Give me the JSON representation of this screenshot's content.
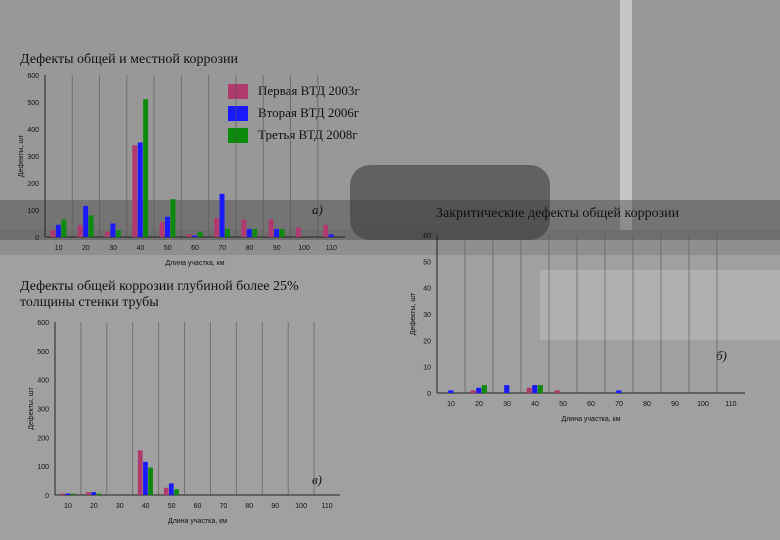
{
  "chart_data": [
    {
      "type": "bar",
      "title": "Дефекты общей и местной коррозии",
      "tag": "а)",
      "xlabel": "Длина участка, км",
      "ylabel": "Дефекты, шт",
      "ylim": [
        0,
        600
      ],
      "yticks": [
        "0",
        "100",
        "200",
        "300",
        "400",
        "500",
        "600"
      ],
      "categories": [
        "10",
        "20",
        "30",
        "40",
        "50",
        "60",
        "70",
        "80",
        "90",
        "100",
        "110"
      ],
      "series": [
        {
          "name": "Первая ВТД 2003г",
          "color": "#b03a6e",
          "values": [
            25,
            45,
            20,
            340,
            55,
            10,
            70,
            65,
            65,
            35,
            45
          ]
        },
        {
          "name": "Вторая ВТД 2006г",
          "color": "#1a1aff",
          "values": [
            45,
            115,
            50,
            350,
            75,
            5,
            160,
            30,
            30,
            0,
            10
          ]
        },
        {
          "name": "Третья ВТД 2008г",
          "color": "#0b8a0b",
          "values": [
            65,
            80,
            25,
            510,
            140,
            20,
            30,
            30,
            30,
            0,
            0
          ]
        }
      ],
      "grid": "vertical",
      "legend": "top-right"
    },
    {
      "type": "bar",
      "title": "Закритические дефекты общей коррозии",
      "tag": "б)",
      "xlabel": "Длина участка, км",
      "ylabel": "Дефекты, шт",
      "ylim": [
        0,
        60
      ],
      "yticks": [
        "0",
        "10",
        "20",
        "30",
        "40",
        "50",
        "60"
      ],
      "categories": [
        "10",
        "20",
        "30",
        "40",
        "50",
        "60",
        "70",
        "80",
        "90",
        "100",
        "110"
      ],
      "series": [
        {
          "name": "Первая ВТД 2003г",
          "color": "#b03a6e",
          "values": [
            0,
            1,
            0,
            2,
            1,
            0,
            0,
            0,
            0,
            0,
            0
          ]
        },
        {
          "name": "Вторая ВТД 2006г",
          "color": "#1a1aff",
          "values": [
            1,
            2,
            3,
            3,
            0,
            0,
            1,
            0,
            0,
            0,
            0
          ]
        },
        {
          "name": "Третья ВТД 2008г",
          "color": "#0b8a0b",
          "values": [
            0,
            3,
            0,
            3,
            0,
            0,
            0,
            0,
            0,
            0,
            0
          ]
        }
      ],
      "grid": "vertical"
    },
    {
      "type": "bar",
      "title": "Дефекты общей коррозии глубиной более 25% толщины стенки трубы",
      "tag": "в)",
      "xlabel": "Длина участка, км",
      "ylabel": "Дефекты, шт",
      "ylim": [
        0,
        600
      ],
      "yticks": [
        "0",
        "100",
        "200",
        "300",
        "400",
        "500",
        "600"
      ],
      "categories": [
        "10",
        "20",
        "30",
        "40",
        "50",
        "60",
        "70",
        "80",
        "90",
        "100",
        "110"
      ],
      "series": [
        {
          "name": "Первая ВТД 2003г",
          "color": "#b03a6e",
          "values": [
            5,
            10,
            0,
            155,
            25,
            0,
            0,
            0,
            0,
            0,
            0
          ]
        },
        {
          "name": "Вторая ВТД 2006г",
          "color": "#1a1aff",
          "values": [
            5,
            10,
            0,
            115,
            40,
            0,
            0,
            0,
            0,
            0,
            0
          ]
        },
        {
          "name": "Третья ВТД 2008г",
          "color": "#0b8a0b",
          "values": [
            5,
            5,
            0,
            95,
            20,
            0,
            0,
            0,
            0,
            0,
            0
          ]
        }
      ],
      "grid": "vertical"
    }
  ]
}
